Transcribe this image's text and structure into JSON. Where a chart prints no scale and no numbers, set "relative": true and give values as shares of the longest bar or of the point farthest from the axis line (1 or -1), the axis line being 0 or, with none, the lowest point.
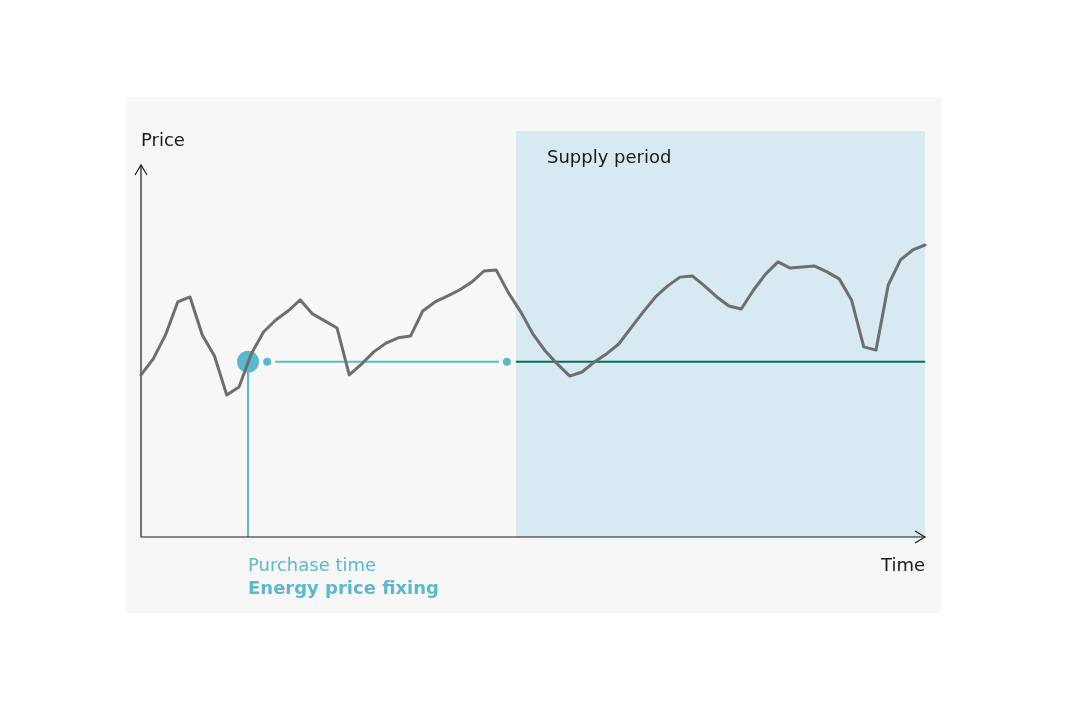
{
  "chart_data": {
    "type": "line",
    "relative": true,
    "xlabel": "Time",
    "categories": [
      null,
      null,
      null,
      null,
      null,
      null,
      null,
      null,
      null,
      null,
      null,
      null,
      null,
      null,
      null,
      null,
      null,
      null,
      null,
      null,
      null,
      null,
      null,
      null,
      null,
      null,
      null,
      null,
      null,
      null,
      null,
      null,
      null,
      null,
      null,
      null,
      null,
      null,
      null,
      null,
      null,
      null,
      null,
      null,
      null,
      null,
      null,
      null,
      null,
      null,
      null,
      null,
      null,
      null,
      null,
      null,
      null,
      null,
      null,
      null,
      null,
      null,
      null,
      null,
      null
    ],
    "series": [
      {
        "color": "#6e6e6e",
        "values": [
          0.555,
          0.61,
          0.692,
          0.805,
          0.822,
          0.692,
          0.62,
          0.486,
          0.514,
          0.627,
          0.702,
          0.743,
          0.774,
          0.812,
          0.764,
          0.74,
          0.716,
          0.555,
          0.592,
          0.634,
          0.664,
          0.682,
          0.688,
          0.774,
          0.805,
          0.825,
          0.846,
          0.873,
          0.911,
          0.914,
          0.836,
          0.771,
          0.695,
          0.637,
          0.592,
          0.551,
          0.565,
          0.599,
          0.627,
          0.661,
          0.716,
          0.771,
          0.822,
          0.86,
          0.89,
          0.894,
          0.86,
          0.822,
          0.791,
          0.781,
          0.846,
          0.901,
          0.942,
          0.921,
          0.925,
          0.928,
          0.908,
          0.884,
          0.812,
          0.651,
          0.64,
          0.863,
          0.949,
          0.983,
          1
        ]
      }
    ],
    "ref_lines": [
      {
        "axis": "y",
        "value": 0.6,
        "color": "#00705a"
      }
    ],
    "annotations": [
      "Price",
      "Supply period",
      "Purchase time",
      "Energy price fixing"
    ]
  }
}
